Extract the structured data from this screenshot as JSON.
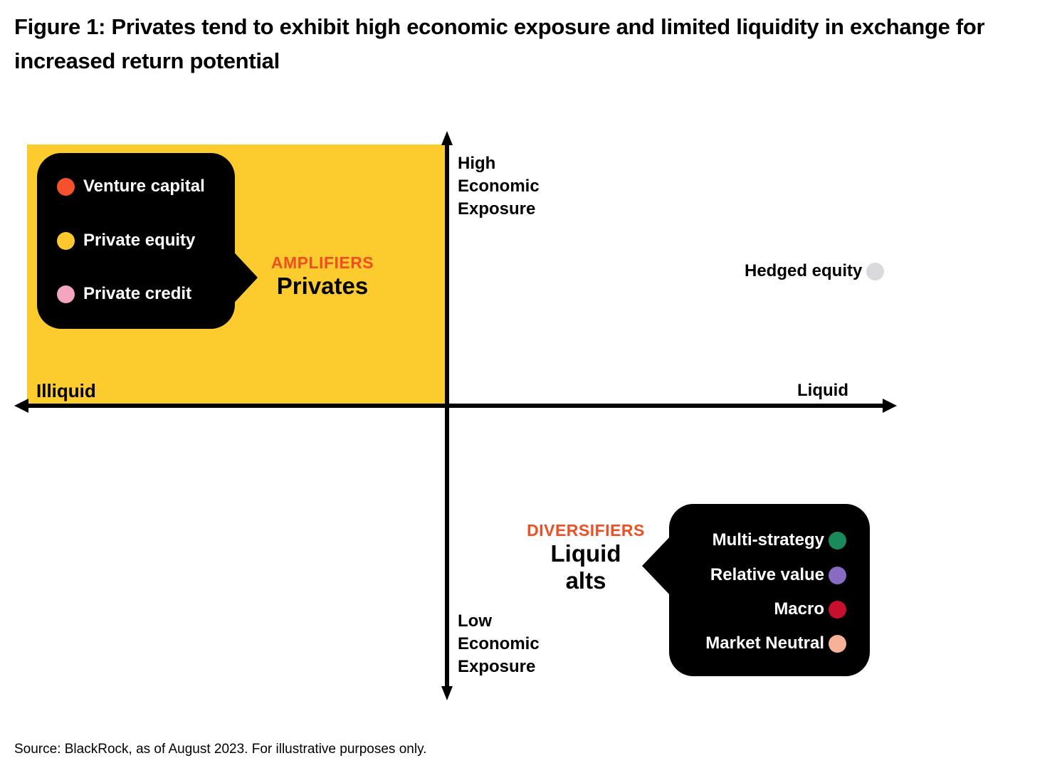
{
  "title": "Figure 1: Privates tend to exhibit high economic exposure and limited liquidity in exchange for increased return potential",
  "axes": {
    "left": "Illiquid",
    "right": "Liquid",
    "top": [
      "High",
      "Economic",
      "Exposure"
    ],
    "bottom": [
      "Low",
      "Economic",
      "Exposure"
    ]
  },
  "amplifiers": {
    "category": "AMPLIFIERS",
    "name": "Privates",
    "items": [
      {
        "label": "Venture capital",
        "color": "#f4512c"
      },
      {
        "label": "Private equity",
        "color": "#fdc82f"
      },
      {
        "label": "Private credit",
        "color": "#f4a5c0"
      }
    ]
  },
  "hedged": {
    "label": "Hedged equity",
    "color": "#d9d9de"
  },
  "diversifiers": {
    "category": "DIVERSIFIERS",
    "name_line1": "Liquid",
    "name_line2": "alts",
    "items": [
      {
        "label": "Multi-strategy",
        "color": "#1a8a5a"
      },
      {
        "label": "Relative value",
        "color": "#8a6bc4"
      },
      {
        "label": "Macro",
        "color": "#c8102e"
      },
      {
        "label": "Market Neutral",
        "color": "#f7b199"
      }
    ]
  },
  "colors": {
    "quadrant": "#fccb2e",
    "accent": "#f04e23"
  },
  "source": "Source: BlackRock, as of August 2023. For illustrative purposes only."
}
